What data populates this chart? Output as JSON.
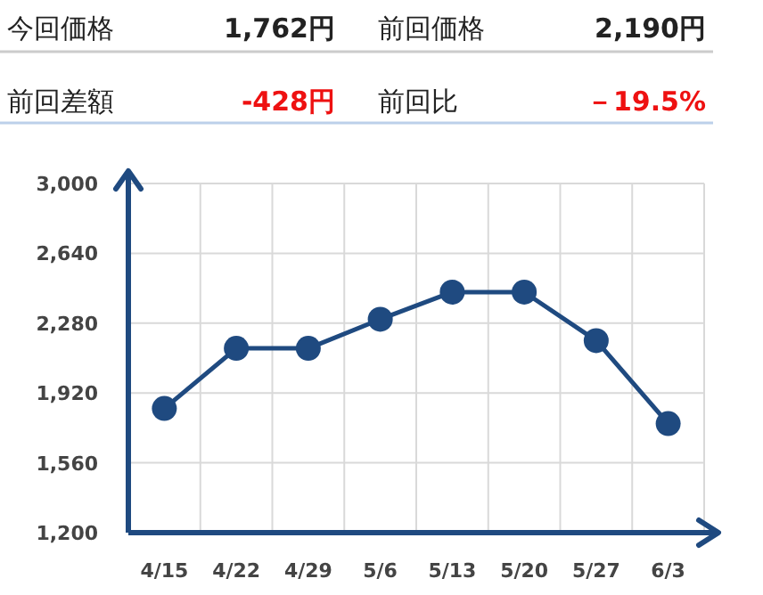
{
  "chart_data": [
    {
      "type": "other",
      "annotations": [
        "今回価格",
        "1,762円",
        "前回価格",
        "2,190円",
        "前回差額",
        "-428円",
        "前回比",
        "－19.5%"
      ]
    },
    {
      "type": "line",
      "categories": [
        "4/15",
        "4/22",
        "4/29",
        "5/6",
        "5/13",
        "5/20",
        "5/27",
        "6/3"
      ],
      "series": [
        {
          "color": "#1f4a80",
          "values": [
            1840,
            2150,
            2150,
            2300,
            2440,
            2440,
            2190,
            1762
          ]
        }
      ],
      "ylim": [
        1200,
        3000
      ],
      "yticks": [
        {
          "value": 1200,
          "label": "1,200"
        },
        {
          "value": 1560,
          "label": "1,560"
        },
        {
          "value": 1920,
          "label": "1,920"
        },
        {
          "value": 2280,
          "label": "2,280"
        },
        {
          "value": 2640,
          "label": "2,640"
        },
        {
          "value": 3000,
          "label": "3,000"
        }
      ],
      "grid": true,
      "marker": "circle",
      "line_style": "solid"
    }
  ]
}
